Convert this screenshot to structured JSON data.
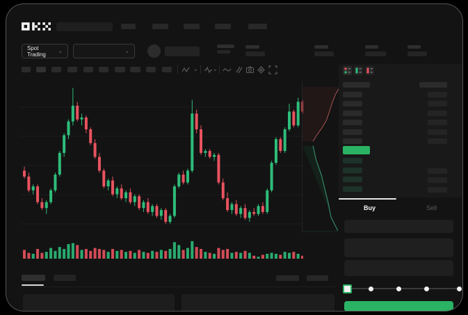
{
  "header": {
    "logo": "OKX",
    "nav_items": 5
  },
  "market_selector": {
    "label": "Spot Trading"
  },
  "toolbar": {
    "icons": [
      "candle-style",
      "chevron",
      "indicators",
      "chevron",
      "line-tool",
      "compare",
      "camera",
      "settings",
      "fullscreen"
    ]
  },
  "colors": {
    "up": "#2ebd7a",
    "down": "#e8535f",
    "accent_green": "#2bb365",
    "depth_ask_line": "#a85455",
    "depth_bid_line": "#3a9e76",
    "panel": "#191919",
    "tab_indicator": "#e8e8e8"
  },
  "chart_data": {
    "type": "candlestick",
    "note": "OHLC in relative price units; volumes relative 0-1",
    "price_min": 25,
    "price_max": 102,
    "grid": true,
    "candles": [
      [
        57,
        59,
        53,
        54
      ],
      [
        54,
        56,
        46,
        47
      ],
      [
        47,
        50,
        45,
        49
      ],
      [
        49,
        50,
        40,
        41
      ],
      [
        41,
        43,
        37,
        38
      ],
      [
        38,
        42,
        35,
        41
      ],
      [
        41,
        48,
        40,
        47
      ],
      [
        47,
        56,
        46,
        55
      ],
      [
        55,
        67,
        54,
        66
      ],
      [
        66,
        76,
        64,
        75
      ],
      [
        75,
        83,
        73,
        82
      ],
      [
        82,
        99,
        80,
        90
      ],
      [
        90,
        92,
        82,
        83
      ],
      [
        83,
        86,
        80,
        84
      ],
      [
        84,
        85,
        76,
        78
      ],
      [
        78,
        79,
        70,
        71
      ],
      [
        71,
        73,
        63,
        64
      ],
      [
        64,
        66,
        56,
        57
      ],
      [
        57,
        58,
        48,
        49
      ],
      [
        49,
        53,
        47,
        52
      ],
      [
        52,
        54,
        44,
        45
      ],
      [
        45,
        49,
        43,
        48
      ],
      [
        48,
        50,
        42,
        43
      ],
      [
        43,
        47,
        41,
        46
      ],
      [
        46,
        48,
        40,
        41
      ],
      [
        41,
        45,
        39,
        44
      ],
      [
        44,
        45,
        37,
        38
      ],
      [
        38,
        42,
        36,
        41
      ],
      [
        41,
        43,
        35,
        36
      ],
      [
        36,
        40,
        34,
        39
      ],
      [
        39,
        40,
        33,
        34
      ],
      [
        34,
        38,
        32,
        37
      ],
      [
        37,
        38,
        30,
        31
      ],
      [
        31,
        35,
        30,
        34
      ],
      [
        34,
        50,
        33,
        49
      ],
      [
        49,
        56,
        48,
        55
      ],
      [
        55,
        57,
        50,
        51
      ],
      [
        51,
        58,
        50,
        57
      ],
      [
        57,
        93,
        56,
        86
      ],
      [
        86,
        88,
        76,
        78
      ],
      [
        78,
        80,
        65,
        66
      ],
      [
        66,
        68,
        64,
        67
      ],
      [
        67,
        68,
        63,
        64
      ],
      [
        64,
        66,
        62,
        65
      ],
      [
        65,
        66,
        50,
        51
      ],
      [
        51,
        53,
        42,
        43
      ],
      [
        43,
        46,
        36,
        37
      ],
      [
        37,
        41,
        35,
        40
      ],
      [
        40,
        42,
        34,
        35
      ],
      [
        35,
        39,
        33,
        38
      ],
      [
        38,
        40,
        32,
        33
      ],
      [
        33,
        37,
        31,
        36
      ],
      [
        36,
        38,
        34,
        35
      ],
      [
        35,
        40,
        34,
        39
      ],
      [
        39,
        41,
        35,
        36
      ],
      [
        36,
        48,
        35,
        47
      ],
      [
        47,
        62,
        46,
        61
      ],
      [
        61,
        74,
        60,
        73
      ],
      [
        73,
        74,
        66,
        67
      ],
      [
        67,
        79,
        66,
        78
      ],
      [
        78,
        91,
        77,
        87
      ],
      [
        87,
        88,
        79,
        80
      ],
      [
        80,
        94,
        79,
        92
      ],
      [
        92,
        93,
        86,
        87
      ]
    ],
    "volumes": [
      0.45,
      0.3,
      0.25,
      0.5,
      0.3,
      0.35,
      0.55,
      0.4,
      0.6,
      0.5,
      0.75,
      0.8,
      0.7,
      0.45,
      0.5,
      0.4,
      0.55,
      0.5,
      0.45,
      0.35,
      0.5,
      0.4,
      0.45,
      0.35,
      0.4,
      0.3,
      0.45,
      0.35,
      0.3,
      0.4,
      0.35,
      0.45,
      0.4,
      0.5,
      0.85,
      0.7,
      0.45,
      0.55,
      0.9,
      0.6,
      0.5,
      0.35,
      0.3,
      0.25,
      0.55,
      0.45,
      0.5,
      0.3,
      0.35,
      0.3,
      0.4,
      0.3,
      0.15,
      0.1,
      0.2,
      0.25,
      0.3,
      0.25,
      0.2,
      0.35,
      0.3,
      0.35,
      0.25,
      0.15
    ],
    "depth": {
      "asks_line": [
        [
          1.0,
          0.04
        ],
        [
          0.88,
          0.09
        ],
        [
          0.8,
          0.14
        ],
        [
          0.72,
          0.2
        ],
        [
          0.64,
          0.26
        ],
        [
          0.52,
          0.31
        ],
        [
          0.38,
          0.36
        ],
        [
          0.28,
          0.4
        ]
      ],
      "bids_line": [
        [
          0.28,
          0.43
        ],
        [
          0.36,
          0.52
        ],
        [
          0.5,
          0.62
        ],
        [
          0.6,
          0.72
        ],
        [
          0.68,
          0.8
        ],
        [
          0.76,
          0.9
        ],
        [
          0.94,
          0.99
        ]
      ]
    }
  },
  "order_book": {
    "view_modes": [
      "book-both",
      "book-bids",
      "book-asks"
    ],
    "asks_rows": 6,
    "bids_rows": 4,
    "highlight_color": "#2bb365"
  },
  "trade_panel": {
    "tabs": [
      {
        "label": "Buy"
      },
      {
        "label": "Sell"
      }
    ],
    "active_tab": "Buy",
    "inputs": 3,
    "slider_stops": 5,
    "slider_position": 0
  }
}
